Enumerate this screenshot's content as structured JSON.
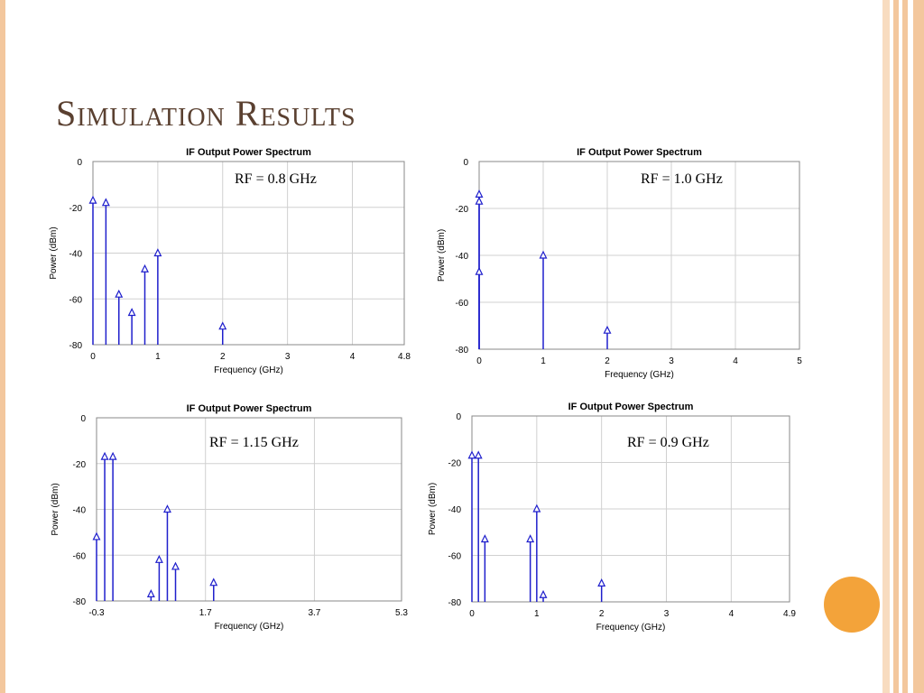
{
  "slide": {
    "title": "Simulation Results",
    "colors": {
      "accent": "#f3a33a",
      "border": "#f3c79d",
      "title": "#5a4030",
      "stem": "#1f1fcc",
      "grid": "#d0d0d0"
    }
  },
  "chart_data": [
    {
      "type": "stem",
      "title": "IF Output Power Spectrum",
      "xlabel": "Frequency (GHz)",
      "ylabel": "Power (dBm)",
      "annotation": "RF = 0.8 GHz",
      "xlim": [
        0,
        4.8
      ],
      "ylim": [
        -80,
        0
      ],
      "xticks": [
        "0",
        "1",
        "2",
        "3",
        "4",
        "4.8"
      ],
      "xtick_values": [
        0,
        1,
        2,
        3,
        4,
        4.8
      ],
      "yticks": [
        "0",
        "-20",
        "-40",
        "-60",
        "-80"
      ],
      "ytick_values": [
        0,
        -20,
        -40,
        -60,
        -80
      ],
      "grid": true,
      "points": [
        [
          0,
          -17
        ],
        [
          0.2,
          -18
        ],
        [
          0.4,
          -58
        ],
        [
          0.6,
          -66
        ],
        [
          0.8,
          -47
        ],
        [
          1.0,
          -40
        ],
        [
          2.0,
          -72
        ]
      ]
    },
    {
      "type": "stem",
      "title": "IF Output Power Spectrum",
      "xlabel": "Frequency (GHz)",
      "ylabel": "Power (dBm)",
      "annotation": "RF = 1.0 GHz",
      "xlim": [
        0,
        5
      ],
      "ylim": [
        -80,
        0
      ],
      "xticks": [
        "0",
        "1",
        "2",
        "3",
        "4",
        "5"
      ],
      "xtick_values": [
        0,
        1,
        2,
        3,
        4,
        5
      ],
      "yticks": [
        "0",
        "-20",
        "-40",
        "-60",
        "-80"
      ],
      "ytick_values": [
        0,
        -20,
        -40,
        -60,
        -80
      ],
      "grid": true,
      "points": [
        [
          0,
          -14
        ],
        [
          0,
          -17
        ],
        [
          0,
          -47
        ],
        [
          1.0,
          -40
        ],
        [
          2.0,
          -72
        ]
      ]
    },
    {
      "type": "stem",
      "title": "IF Output Power Spectrum",
      "xlabel": "Frequency (GHz)",
      "ylabel": "Power (dBm)",
      "annotation": "RF = 1.15 GHz",
      "xlim": [
        -0.3,
        5.3
      ],
      "ylim": [
        -80,
        0
      ],
      "xticks": [
        "-0.3",
        "1.7",
        "3.7",
        "5.3"
      ],
      "xtick_values": [
        -0.3,
        1.7,
        3.7,
        5.3
      ],
      "yticks": [
        "0",
        "-20",
        "-40",
        "-60",
        "-80"
      ],
      "ytick_values": [
        0,
        -20,
        -40,
        -60,
        -80
      ],
      "grid": true,
      "points": [
        [
          -0.3,
          -52
        ],
        [
          -0.15,
          -17
        ],
        [
          0,
          -17
        ],
        [
          0.7,
          -77
        ],
        [
          0.85,
          -62
        ],
        [
          1.0,
          -40
        ],
        [
          1.15,
          -65
        ],
        [
          1.85,
          -72
        ]
      ]
    },
    {
      "type": "stem",
      "title": "IF Output Power Spectrum",
      "xlabel": "Frequency (GHz)",
      "ylabel": "Power (dBm)",
      "annotation": "RF = 0.9 GHz",
      "xlim": [
        0,
        4.9
      ],
      "ylim": [
        -80,
        0
      ],
      "xticks": [
        "0",
        "1",
        "2",
        "3",
        "4",
        "4.9"
      ],
      "xtick_values": [
        0,
        1,
        2,
        3,
        4,
        4.9
      ],
      "yticks": [
        "0",
        "-20",
        "-40",
        "-60",
        "-80"
      ],
      "ytick_values": [
        0,
        -20,
        -40,
        -60,
        -80
      ],
      "grid": true,
      "points": [
        [
          0,
          -17
        ],
        [
          0.1,
          -17
        ],
        [
          0.2,
          -53
        ],
        [
          0.9,
          -53
        ],
        [
          1.0,
          -40
        ],
        [
          1.1,
          -77
        ],
        [
          2.0,
          -72
        ]
      ]
    }
  ]
}
